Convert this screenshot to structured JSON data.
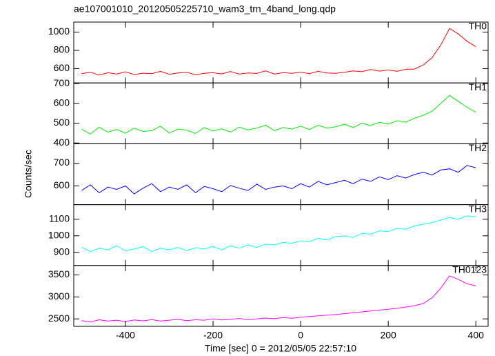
{
  "chart_data": {
    "type": "line",
    "title": "ae107001010_20120505225710_wam3_trn_4band_long.qdp",
    "x_label": "Time [sec] 0 = 2012/05/05 22:57:10",
    "y_label": "Counts/sec",
    "xlim": [
      -518,
      428
    ],
    "xticks": [
      -400,
      -200,
      0,
      200,
      400
    ],
    "x": [
      -500,
      -480,
      -460,
      -440,
      -420,
      -400,
      -380,
      -360,
      -340,
      -320,
      -300,
      -280,
      -260,
      -240,
      -220,
      -200,
      -180,
      -160,
      -140,
      -120,
      -100,
      -80,
      -60,
      -40,
      -20,
      0,
      20,
      40,
      60,
      80,
      100,
      120,
      140,
      160,
      180,
      200,
      220,
      240,
      260,
      280,
      300,
      320,
      340,
      360,
      380,
      400
    ],
    "series": [
      {
        "name": "TH0",
        "color": "#ff0000",
        "ylim": [
          443,
          1110
        ],
        "yticks": [
          600,
          800,
          1000
        ],
        "values": [
          545,
          560,
          530,
          555,
          540,
          565,
          535,
          550,
          545,
          570,
          538,
          552,
          560,
          532,
          548,
          555,
          542,
          568,
          540,
          553,
          547,
          575,
          540,
          556,
          549,
          562,
          545,
          570,
          553,
          548,
          560,
          575,
          566,
          590,
          572,
          585,
          570,
          592,
          595,
          640,
          720,
          860,
          1040,
          980,
          900,
          840
        ]
      },
      {
        "name": "TH1",
        "color": "#00ee00",
        "ylim": [
          396,
          703
        ],
        "yticks": [
          400,
          500,
          600,
          700
        ],
        "values": [
          470,
          445,
          480,
          455,
          468,
          450,
          475,
          458,
          462,
          485,
          450,
          470,
          465,
          448,
          478,
          460,
          472,
          455,
          480,
          466,
          475,
          490,
          462,
          478,
          470,
          485,
          468,
          490,
          475,
          482,
          495,
          478,
          500,
          488,
          505,
          495,
          512,
          505,
          525,
          540,
          560,
          600,
          640,
          610,
          580,
          555
        ]
      },
      {
        "name": "TH2",
        "color": "#0000ff",
        "ylim": [
          518,
          785
        ],
        "yticks": [
          600,
          700
        ],
        "values": [
          580,
          605,
          570,
          595,
          585,
          600,
          565,
          590,
          610,
          575,
          595,
          585,
          605,
          570,
          598,
          588,
          575,
          602,
          590,
          580,
          608,
          585,
          595,
          600,
          588,
          610,
          595,
          620,
          605,
          615,
          625,
          610,
          630,
          620,
          640,
          628,
          645,
          635,
          650,
          660,
          648,
          670,
          675,
          660,
          690,
          680
        ]
      },
      {
        "name": "TH3",
        "color": "#00ffff",
        "ylim": [
          821,
          1188
        ],
        "yticks": [
          900,
          1000,
          1100
        ],
        "values": [
          930,
          905,
          925,
          915,
          940,
          910,
          920,
          935,
          905,
          925,
          915,
          930,
          910,
          928,
          920,
          935,
          915,
          940,
          925,
          945,
          930,
          950,
          945,
          960,
          955,
          970,
          965,
          985,
          975,
          995,
          1000,
          990,
          1015,
          1010,
          1030,
          1025,
          1045,
          1040,
          1060,
          1070,
          1080,
          1095,
          1110,
          1100,
          1120,
          1115
        ]
      },
      {
        "name": "TH0123",
        "color": "#ff00ff",
        "ylim": [
          2331,
          3715
        ],
        "yticks": [
          2500,
          3000,
          3500
        ],
        "values": [
          2460,
          2430,
          2480,
          2450,
          2470,
          2440,
          2475,
          2455,
          2485,
          2450,
          2470,
          2490,
          2460,
          2480,
          2470,
          2500,
          2475,
          2490,
          2510,
          2485,
          2500,
          2520,
          2505,
          2530,
          2515,
          2540,
          2555,
          2570,
          2585,
          2600,
          2620,
          2640,
          2660,
          2680,
          2700,
          2720,
          2740,
          2770,
          2800,
          2850,
          2980,
          3200,
          3480,
          3400,
          3300,
          3250
        ]
      }
    ]
  }
}
